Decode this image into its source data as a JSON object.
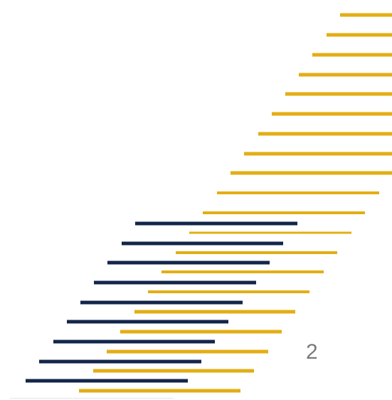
{
  "slide": {
    "page_number": "2"
  },
  "colors": {
    "gold": "#E3AE15",
    "navy": "#13254A",
    "page_number": "#7a7a7a"
  }
}
